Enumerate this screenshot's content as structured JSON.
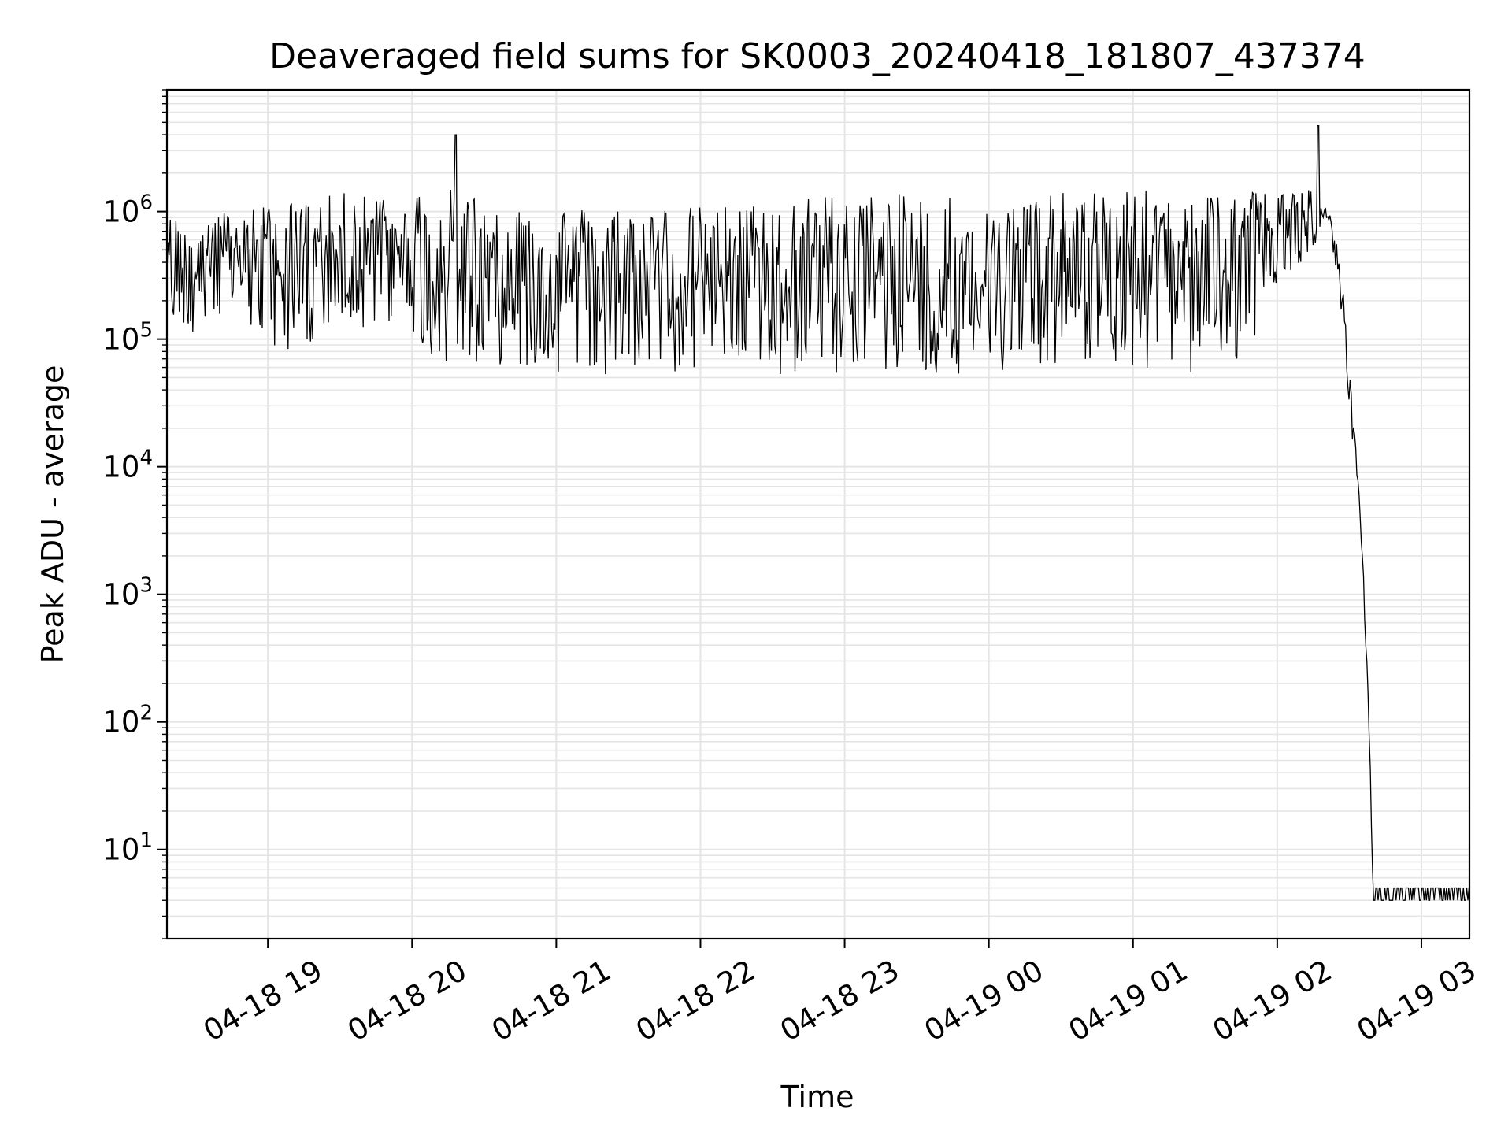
{
  "chart_data": {
    "type": "line",
    "title": "Deaveraged field sums for SK0003_20240418_181807_437374",
    "xlabel": "Time",
    "ylabel": "Peak ADU - average",
    "yscale": "log",
    "ylim": [
      2,
      9000000
    ],
    "xlim": [
      "2024-04-18 18:18",
      "2024-04-19 03:20"
    ],
    "grid": true,
    "line_color": "#000000",
    "grid_color": "#e5e5e5",
    "x_tick_labels": [
      "04-18 19",
      "04-18 20",
      "04-18 21",
      "04-18 22",
      "04-18 23",
      "04-19 00",
      "04-19 01",
      "04-19 02",
      "04-19 03"
    ],
    "y_tick_labels": [
      {
        "base": "10",
        "exp": "1"
      },
      {
        "base": "10",
        "exp": "2"
      },
      {
        "base": "10",
        "exp": "3"
      },
      {
        "base": "10",
        "exp": "4"
      },
      {
        "base": "10",
        "exp": "5"
      },
      {
        "base": "10",
        "exp": "6"
      }
    ],
    "series": [
      {
        "x": [
          "2024-04-18 18:18",
          "2024-04-18 18:30",
          "2024-04-18 18:45",
          "2024-04-18 19:00",
          "2024-04-18 19:15",
          "2024-04-18 19:30",
          "2024-04-18 19:45",
          "2024-04-18 19:58",
          "2024-04-18 20:05",
          "2024-04-18 20:18",
          "2024-04-18 20:30",
          "2024-04-18 20:45",
          "2024-04-18 21:00",
          "2024-04-18 21:15",
          "2024-04-18 21:30",
          "2024-04-18 21:45",
          "2024-04-18 22:00",
          "2024-04-18 22:15",
          "2024-04-18 22:30",
          "2024-04-18 22:45",
          "2024-04-18 22:50",
          "2024-04-18 23:00",
          "2024-04-18 23:15",
          "2024-04-18 23:30",
          "2024-04-18 23:45",
          "2024-04-18 23:55",
          "2024-04-19 00:00",
          "2024-04-19 00:15",
          "2024-04-19 00:30",
          "2024-04-19 00:45",
          "2024-04-19 01:00",
          "2024-04-19 01:15",
          "2024-04-19 01:30",
          "2024-04-19 01:45",
          "2024-04-19 02:00",
          "2024-04-19 02:10",
          "2024-04-19 02:17",
          "2024-04-19 02:22",
          "2024-04-19 02:27",
          "2024-04-19 02:30",
          "2024-04-19 02:33",
          "2024-04-19 02:36",
          "2024-04-19 02:38",
          "2024-04-19 02:40",
          "2024-04-19 02:42",
          "2024-04-19 02:45",
          "2024-04-19 03:00",
          "2024-04-19 03:20"
        ],
        "low": [
          150000,
          100000,
          110000,
          90000,
          75000,
          100000,
          130000,
          130000,
          70000,
          65000,
          65000,
          60000,
          55000,
          55000,
          50000,
          52000,
          55000,
          52000,
          50000,
          52000,
          52000,
          55000,
          55000,
          55000,
          50000,
          60000,
          55000,
          60000,
          65000,
          60000,
          60000,
          55000,
          50000,
          55000,
          250000,
          400000,
          600000,
          600000,
          100000,
          25000,
          8000,
          800,
          100,
          4,
          4,
          4,
          4,
          4
        ],
        "high": [
          900000,
          1100000,
          1000000,
          1200000,
          1200000,
          1400000,
          1500000,
          1300000,
          1600000,
          1500000,
          1300000,
          1200000,
          1100000,
          1100000,
          1100000,
          1100000,
          1100000,
          1150000,
          1200000,
          1300000,
          1400000,
          1400000,
          1350000,
          1400000,
          1400000,
          1000000,
          1100000,
          1300000,
          1400000,
          1450000,
          1500000,
          1450000,
          1450000,
          1500000,
          1650000,
          1650000,
          1400000,
          1000000,
          350000,
          60000,
          15000,
          1500,
          150,
          5,
          5,
          5,
          5,
          5
        ]
      }
    ],
    "spikes": [
      {
        "x": "2024-04-18 20:18",
        "y": 4000000
      },
      {
        "x": "2024-04-19 02:17",
        "y": 4700000
      }
    ]
  }
}
